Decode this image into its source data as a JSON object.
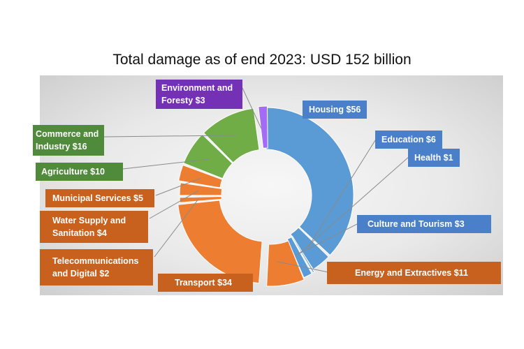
{
  "chart_data": {
    "type": "pie",
    "title": "Total damage as of end 2023: USD 152 billion",
    "categories": [
      "Housing",
      "Education",
      "Health",
      "Culture and Tourism",
      "Energy and Extractives",
      "Transport",
      "Telecommunications and Digital",
      "Water Supply and Sanitation",
      "Municipal Services",
      "Agriculture",
      "Commerce and Industry",
      "Environment and Foresty"
    ],
    "values": [
      56,
      6,
      1,
      3,
      11,
      34,
      2,
      4,
      5,
      10,
      16,
      3
    ],
    "labels": [
      "Housing $56",
      "Education $6",
      "Health $1",
      "Culture and Tourism $3",
      "Energy and Extractives $11",
      "Transport $34",
      "Telecommunications and Digital $2",
      "Water Supply and Sanitation $4",
      "Municipal Services $5",
      "Agriculture $10",
      "Commerce and Industry $16",
      "Environment and Foresty $3"
    ],
    "colors": [
      "#5b9bd5",
      "#5b9bd5",
      "#5b9bd5",
      "#5b9bd5",
      "#ed7d31",
      "#ed7d31",
      "#ed7d31",
      "#ed7d31",
      "#ed7d31",
      "#70ad47",
      "#70ad47",
      "#a46cf5"
    ],
    "donut": true
  }
}
